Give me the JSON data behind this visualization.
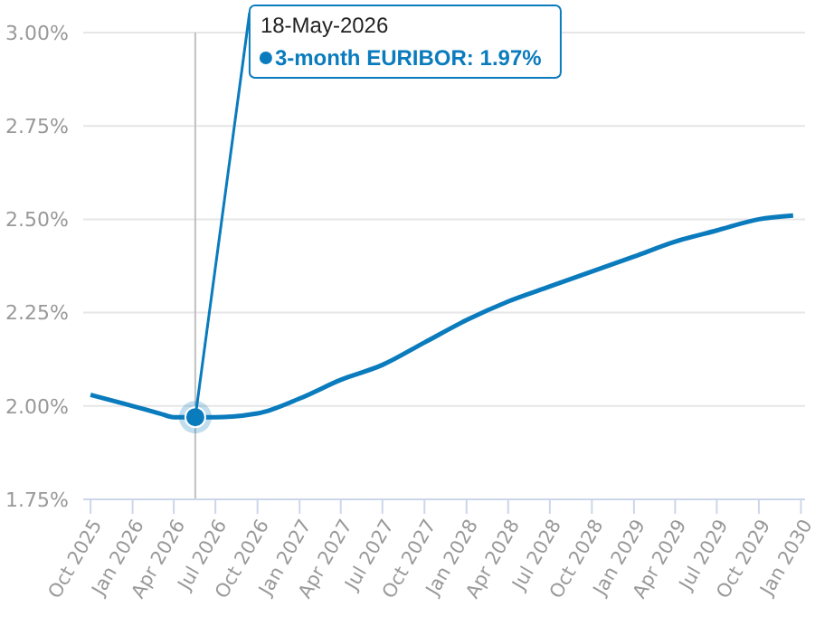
{
  "chart_data": {
    "type": "line",
    "x": [
      "2025-10-01",
      "2025-12-01",
      "2026-01-01",
      "2026-03-01",
      "2026-04-01",
      "2026-05-18",
      "2026-07-01",
      "2026-10-01",
      "2027-01-01",
      "2027-04-01",
      "2027-07-01",
      "2027-10-01",
      "2028-01-01",
      "2028-04-01",
      "2028-07-01",
      "2028-10-01",
      "2029-01-01",
      "2029-04-01",
      "2029-07-01",
      "2029-10-01",
      "2029-12-15"
    ],
    "series": [
      {
        "color": "#0a7bbd",
        "values": [
          2.03,
          2.01,
          2.0,
          1.98,
          1.97,
          1.97,
          1.97,
          1.98,
          2.02,
          2.07,
          2.11,
          2.17,
          2.23,
          2.28,
          2.32,
          2.36,
          2.4,
          2.44,
          2.47,
          2.5,
          2.51
        ]
      }
    ],
    "xlim": [
      "2025-09-15",
      "2030-01-10"
    ],
    "xticks": [
      {
        "value": "2025-10-01",
        "label": "Oct 2025"
      },
      {
        "value": "2026-01-01",
        "label": "Jan 2026"
      },
      {
        "value": "2026-04-01",
        "label": "Apr 2026"
      },
      {
        "value": "2026-07-01",
        "label": "Jul 2026"
      },
      {
        "value": "2026-10-01",
        "label": "Oct 2026"
      },
      {
        "value": "2027-01-01",
        "label": "Jan 2027"
      },
      {
        "value": "2027-04-01",
        "label": "Apr 2027"
      },
      {
        "value": "2027-07-01",
        "label": "Jul 2027"
      },
      {
        "value": "2027-10-01",
        "label": "Oct 2027"
      },
      {
        "value": "2028-01-01",
        "label": "Jan 2028"
      },
      {
        "value": "2028-04-01",
        "label": "Apr 2028"
      },
      {
        "value": "2028-07-01",
        "label": "Jul 2028"
      },
      {
        "value": "2028-10-01",
        "label": "Oct 2028"
      },
      {
        "value": "2029-01-01",
        "label": "Jan 2029"
      },
      {
        "value": "2029-04-01",
        "label": "Apr 2029"
      },
      {
        "value": "2029-07-01",
        "label": "Jul 2029"
      },
      {
        "value": "2029-10-01",
        "label": "Oct 2029"
      },
      {
        "value": "2030-01-01",
        "label": "Jan 2030"
      }
    ],
    "ylim": [
      1.75,
      3.0
    ],
    "yticks": [
      {
        "value": 1.75,
        "label": "1.75%"
      },
      {
        "value": 2.0,
        "label": "2.00%"
      },
      {
        "value": 2.25,
        "label": "2.25%"
      },
      {
        "value": 2.5,
        "label": "2.50%"
      },
      {
        "value": 2.75,
        "label": "2.75%"
      },
      {
        "value": 3.0,
        "label": "3.00%"
      }
    ],
    "grid": "y",
    "marker": "none",
    "line_style": "solid",
    "legend": false,
    "ref_lines": [
      {
        "axis": "x",
        "value": "2026-05-18",
        "color": "#c0c0c0"
      }
    ],
    "annotations": [
      {
        "text": "18-May-2026",
        "x": "2026-05-18",
        "y": 1.97
      },
      "3-month EURIBOR: 1.97%"
    ]
  }
}
